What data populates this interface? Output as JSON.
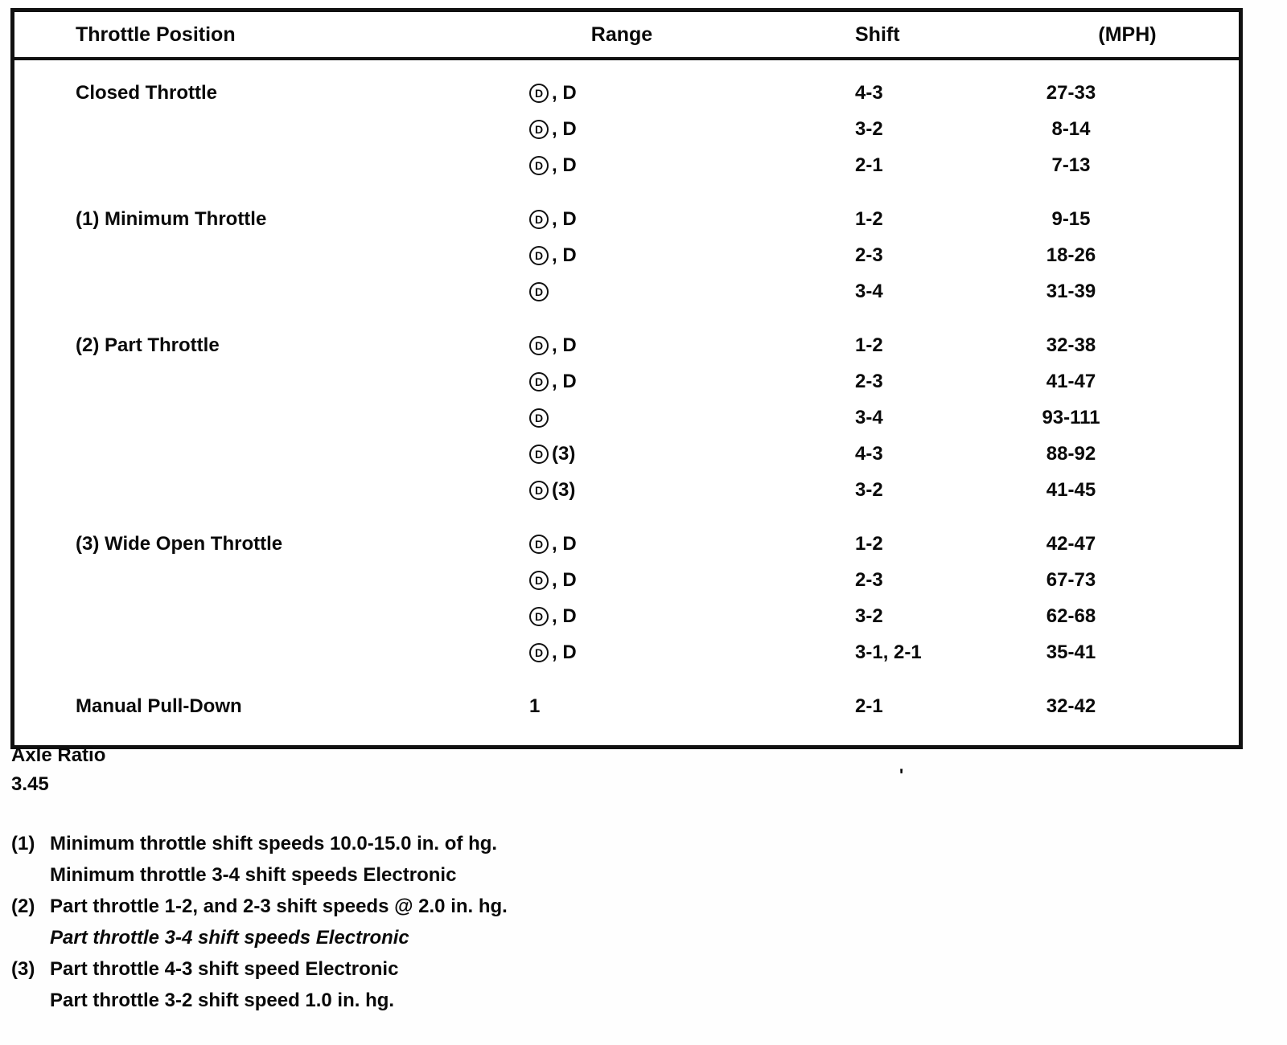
{
  "symbol": {
    "name": "overdrive-icon",
    "letter": "D"
  },
  "table": {
    "headers": [
      "Throttle Position",
      "Range",
      "Shift",
      "(MPH)"
    ],
    "groups": [
      {
        "rows": [
          {
            "label": "Closed Throttle",
            "range": {
              "symbol": true,
              "text": ", D"
            },
            "shift": "4-3",
            "mph": "27-33"
          },
          {
            "label": "",
            "range": {
              "symbol": true,
              "text": ", D"
            },
            "shift": "3-2",
            "mph": "8-14"
          },
          {
            "label": "",
            "range": {
              "symbol": true,
              "text": ", D"
            },
            "shift": "2-1",
            "mph": "7-13"
          }
        ]
      },
      {
        "rows": [
          {
            "label": "(1) Minimum Throttle",
            "range": {
              "symbol": true,
              "text": ", D"
            },
            "shift": "1-2",
            "mph": "9-15"
          },
          {
            "label": "",
            "range": {
              "symbol": true,
              "text": ", D"
            },
            "shift": "2-3",
            "mph": "18-26"
          },
          {
            "label": "",
            "range": {
              "symbol": true,
              "text": ""
            },
            "shift": "3-4",
            "mph": "31-39"
          }
        ]
      },
      {
        "rows": [
          {
            "label": "(2) Part Throttle",
            "range": {
              "symbol": true,
              "text": ", D"
            },
            "shift": "1-2",
            "mph": "32-38"
          },
          {
            "label": "",
            "range": {
              "symbol": true,
              "text": ", D"
            },
            "shift": "2-3",
            "mph": "41-47"
          },
          {
            "label": "",
            "range": {
              "symbol": true,
              "text": ""
            },
            "shift": "3-4",
            "mph": "93-111"
          },
          {
            "label": "",
            "range": {
              "symbol": true,
              "text": " (3)"
            },
            "shift": "4-3",
            "mph": "88-92"
          },
          {
            "label": "",
            "range": {
              "symbol": true,
              "text": " (3)"
            },
            "shift": "3-2",
            "mph": "41-45"
          }
        ]
      },
      {
        "rows": [
          {
            "label": "(3) Wide Open Throttle",
            "range": {
              "symbol": true,
              "text": ", D"
            },
            "shift": "1-2",
            "mph": "42-47"
          },
          {
            "label": "",
            "range": {
              "symbol": true,
              "text": ", D"
            },
            "shift": "2-3",
            "mph": "67-73"
          },
          {
            "label": "",
            "range": {
              "symbol": true,
              "text": ", D"
            },
            "shift": "3-2",
            "mph": "62-68"
          },
          {
            "label": "",
            "range": {
              "symbol": true,
              "text": ", D"
            },
            "shift": "3-1, 2-1",
            "mph": "35-41"
          }
        ]
      },
      {
        "rows": [
          {
            "label": "Manual Pull-Down",
            "range": {
              "symbol": false,
              "text": "1"
            },
            "shift": "2-1",
            "mph": "32-42"
          }
        ]
      }
    ]
  },
  "axle": {
    "title": "Axle Ratio",
    "value": "3.45"
  },
  "stray_mark": "'",
  "footnotes": [
    {
      "num": "(1)",
      "lines": [
        {
          "text": "Minimum throttle shift speeds 10.0-15.0 in. of hg.",
          "italic": false
        },
        {
          "text": "Minimum throttle 3-4 shift speeds Electronic",
          "italic": false
        }
      ]
    },
    {
      "num": "(2)",
      "lines": [
        {
          "text": "Part throttle 1-2, and 2-3 shift speeds @ 2.0 in. hg.",
          "italic": false
        },
        {
          "text": "Part throttle 3-4 shift speeds Electronic",
          "italic": true
        }
      ]
    },
    {
      "num": "(3)",
      "lines": [
        {
          "text": "Part throttle 4-3 shift speed Electronic",
          "italic": false
        },
        {
          "text": "Part throttle 3-2 shift speed 1.0 in. hg.",
          "italic": false
        }
      ]
    }
  ]
}
